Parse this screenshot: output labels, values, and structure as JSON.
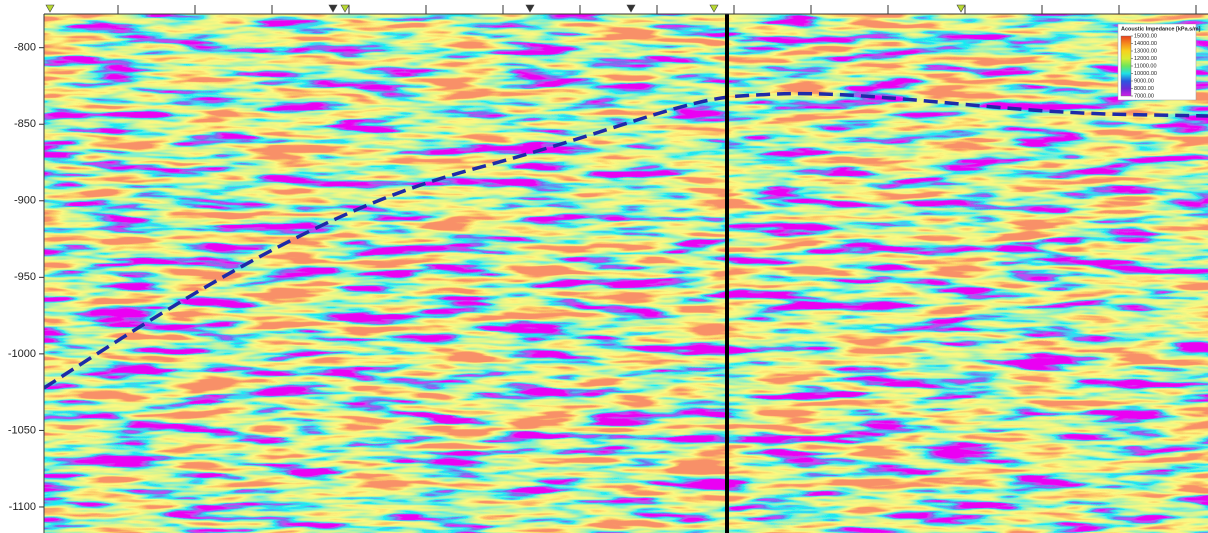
{
  "chart_data": {
    "type": "seismic-section",
    "ylim": [
      -1117,
      -778
    ],
    "yticks": [
      -800,
      -850,
      -900,
      -950,
      -1000,
      -1050,
      -1100
    ],
    "colorbar": {
      "title": "Acoustic Impedance [kPa.s/m]",
      "ticks": [
        {
          "value": 15000,
          "label": "15000.00"
        },
        {
          "value": 14000,
          "label": "14000.00"
        },
        {
          "value": 13000,
          "label": "13000.00"
        },
        {
          "value": 12000,
          "label": "12000.00"
        },
        {
          "value": 11000,
          "label": "11000.00"
        },
        {
          "value": 10000,
          "label": "10000.00"
        },
        {
          "value": 9000,
          "label": "9000.00"
        },
        {
          "value": 8000,
          "label": "8000.00"
        },
        {
          "value": 7000,
          "label": "7000.00"
        }
      ],
      "colors": [
        "#e8401e",
        "#f58a1e",
        "#f7d21e",
        "#d8ec32",
        "#6ee65a",
        "#1ee0e6",
        "#2a56e0",
        "#6a2ad8",
        "#d21ee8"
      ]
    }
  }
}
